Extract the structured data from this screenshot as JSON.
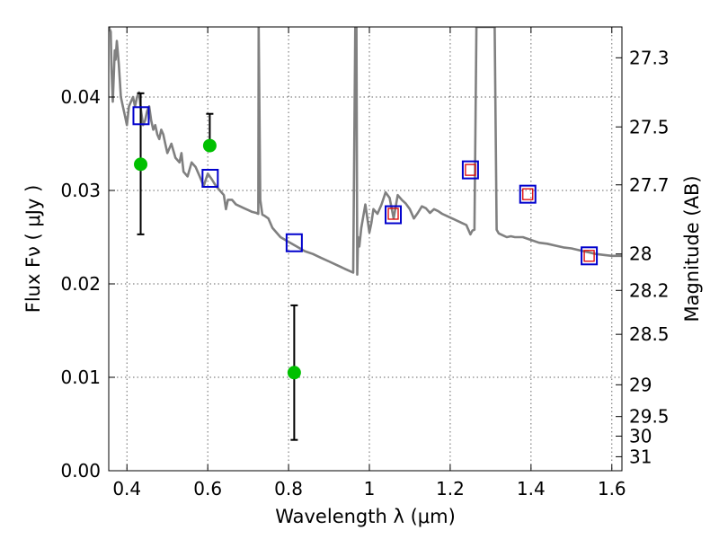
{
  "chart_data": {
    "type": "scatter",
    "title": "",
    "xlabel": "Wavelength  λ (μm)",
    "ylabel": "Flux  Fν  ( μJy )",
    "y2label": "Magnitude (AB)",
    "xlim": [
      0.355,
      1.625
    ],
    "ylim": [
      0.0,
      0.0475
    ],
    "grid": true,
    "x_ticks": [
      0.4,
      0.6,
      0.8,
      1.0,
      1.2,
      1.4,
      1.6
    ],
    "x_tick_labels": [
      "0.4",
      "0.6",
      "0.8",
      "1",
      "1.2",
      "1.4",
      "1.6"
    ],
    "y_ticks": [
      0.0,
      0.01,
      0.02,
      0.03,
      0.04
    ],
    "y_tick_labels": [
      "0.00",
      "0.01",
      "0.02",
      "0.03",
      "0.04"
    ],
    "y2_ticks": [
      {
        "label": "27.3",
        "flux": 0.0442
      },
      {
        "label": "27.5",
        "flux": 0.0368
      },
      {
        "label": "27.7",
        "flux": 0.0306
      },
      {
        "label": "28",
        "flux": 0.0232
      },
      {
        "label": "28.2",
        "flux": 0.0193
      },
      {
        "label": "28.5",
        "flux": 0.0146
      },
      {
        "label": "29",
        "flux": 0.0092
      },
      {
        "label": "29.5",
        "flux": 0.0058
      },
      {
        "label": "30",
        "flux": 0.0037
      },
      {
        "label": "31",
        "flux": 0.0015
      }
    ],
    "series": [
      {
        "style": "line",
        "color": "#808080",
        "x": [
          0.355,
          0.36,
          0.362,
          0.365,
          0.37,
          0.372,
          0.375,
          0.38,
          0.385,
          0.39,
          0.395,
          0.4,
          0.405,
          0.41,
          0.415,
          0.42,
          0.425,
          0.43,
          0.435,
          0.44,
          0.445,
          0.45,
          0.455,
          0.46,
          0.465,
          0.47,
          0.475,
          0.48,
          0.485,
          0.49,
          0.495,
          0.5,
          0.51,
          0.52,
          0.53,
          0.535,
          0.54,
          0.55,
          0.56,
          0.57,
          0.58,
          0.585,
          0.59,
          0.6,
          0.61,
          0.62,
          0.63,
          0.64,
          0.645,
          0.65,
          0.66,
          0.67,
          0.68,
          0.69,
          0.7,
          0.71,
          0.72,
          0.725,
          0.726,
          0.73,
          0.735,
          0.74,
          0.75,
          0.76,
          0.78,
          0.8,
          0.82,
          0.84,
          0.86,
          0.88,
          0.9,
          0.92,
          0.94,
          0.95,
          0.96,
          0.965,
          0.968,
          0.97,
          0.972,
          0.975,
          0.98,
          0.99,
          1.0,
          1.005,
          1.01,
          1.02,
          1.03,
          1.04,
          1.05,
          1.06,
          1.07,
          1.08,
          1.09,
          1.1,
          1.11,
          1.12,
          1.13,
          1.14,
          1.15,
          1.16,
          1.17,
          1.18,
          1.19,
          1.2,
          1.21,
          1.22,
          1.23,
          1.24,
          1.25,
          1.255,
          1.26,
          1.265,
          1.27,
          1.3,
          1.31,
          1.315,
          1.32,
          1.33,
          1.34,
          1.35,
          1.36,
          1.38,
          1.4,
          1.42,
          1.44,
          1.46,
          1.48,
          1.5,
          1.52,
          1.54,
          1.56,
          1.58,
          1.6,
          1.625
        ],
        "y": [
          0.0475,
          0.047,
          0.043,
          0.0395,
          0.045,
          0.044,
          0.046,
          0.0435,
          0.04,
          0.039,
          0.038,
          0.037,
          0.039,
          0.0395,
          0.04,
          0.039,
          0.04,
          0.0405,
          0.0385,
          0.037,
          0.0375,
          0.0385,
          0.039,
          0.0375,
          0.0365,
          0.037,
          0.036,
          0.0355,
          0.0365,
          0.036,
          0.035,
          0.034,
          0.035,
          0.0335,
          0.033,
          0.034,
          0.032,
          0.0315,
          0.033,
          0.0325,
          0.0315,
          0.031,
          0.0305,
          0.0318,
          0.0312,
          0.0305,
          0.03,
          0.0295,
          0.028,
          0.029,
          0.029,
          0.0285,
          0.0283,
          0.0281,
          0.0279,
          0.0277,
          0.0276,
          0.0275,
          0.0475,
          0.029,
          0.0274,
          0.0273,
          0.027,
          0.026,
          0.025,
          0.0245,
          0.024,
          0.0235,
          0.0232,
          0.0228,
          0.0224,
          0.022,
          0.0216,
          0.0214,
          0.0212,
          0.0475,
          0.0475,
          0.021,
          0.025,
          0.024,
          0.026,
          0.0285,
          0.0255,
          0.0265,
          0.028,
          0.0275,
          0.0285,
          0.0298,
          0.0292,
          0.027,
          0.0295,
          0.029,
          0.0286,
          0.028,
          0.027,
          0.0276,
          0.0283,
          0.0281,
          0.0276,
          0.028,
          0.0278,
          0.0275,
          0.0273,
          0.0271,
          0.0269,
          0.0267,
          0.0265,
          0.0263,
          0.0253,
          0.0257,
          0.0258,
          0.0475,
          0.0475,
          0.0475,
          0.0475,
          0.0258,
          0.0254,
          0.0252,
          0.025,
          0.0251,
          0.025,
          0.025,
          0.0247,
          0.0244,
          0.0243,
          0.0241,
          0.0239,
          0.0238,
          0.0236,
          0.0234,
          0.0232,
          0.0231,
          0.023,
          0.023
        ]
      },
      {
        "style": "marker-circle",
        "color": "#00c000",
        "x": [
          0.434,
          0.605,
          0.814
        ],
        "y": [
          0.0328,
          0.0348,
          0.0105
        ],
        "yerr_low": [
          0.0253,
          null,
          0.0033
        ],
        "yerr_high": [
          0.0404,
          0.0382,
          0.0177
        ]
      },
      {
        "style": "marker-square-open",
        "color": "#0000cc",
        "x": [
          0.435,
          0.606,
          0.814,
          1.059,
          1.25,
          1.392,
          1.544
        ],
        "y": [
          0.038,
          0.0313,
          0.0244,
          0.0274,
          0.0322,
          0.0296,
          0.023
        ]
      },
      {
        "style": "marker-square-small",
        "color": "#dd0000",
        "x": [
          1.059,
          1.25,
          1.392,
          1.544
        ],
        "y": [
          0.0275,
          0.0322,
          0.0296,
          0.023
        ]
      }
    ]
  }
}
